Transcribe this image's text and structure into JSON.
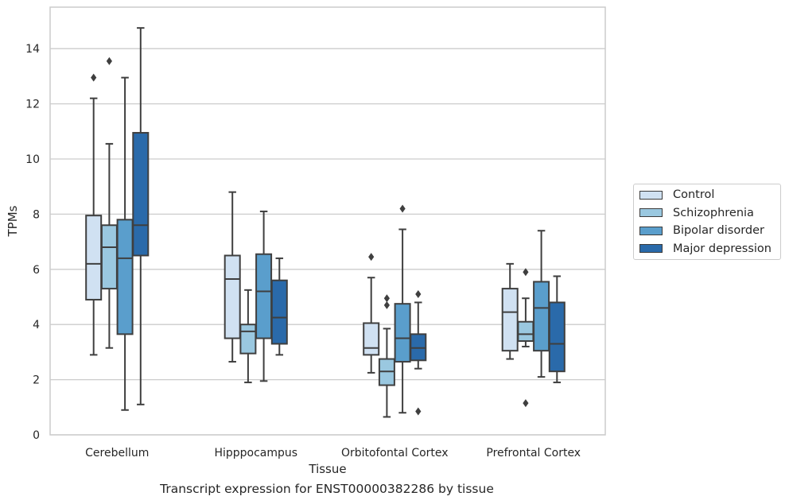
{
  "caption": "Transcript expression for ENST00000382286 by tissue",
  "chart_data": {
    "type": "box",
    "title": "",
    "xlabel": "Tissue",
    "ylabel": "TPMs",
    "ylim": [
      0,
      15.5
    ],
    "yticks": [
      0,
      2,
      4,
      6,
      8,
      10,
      12,
      14
    ],
    "grid": "horizontal",
    "legend_position": "right",
    "categories": [
      "Cerebellum",
      "Hipppocampus",
      "Orbitofontal Cortex",
      "Prefrontal Cortex"
    ],
    "series": [
      {
        "name": "Control",
        "color": "#d0e1f2",
        "boxes": [
          {
            "whislo": 2.9,
            "q1": 4.9,
            "med": 6.2,
            "q3": 7.95,
            "whishi": 12.2,
            "fliers": [
              12.95
            ]
          },
          {
            "whislo": 2.65,
            "q1": 3.5,
            "med": 5.65,
            "q3": 6.5,
            "whishi": 8.8,
            "fliers": []
          },
          {
            "whislo": 2.25,
            "q1": 2.9,
            "med": 3.15,
            "q3": 4.05,
            "whishi": 5.7,
            "fliers": [
              6.45
            ]
          },
          {
            "whislo": 2.75,
            "q1": 3.05,
            "med": 4.45,
            "q3": 5.3,
            "whishi": 6.2,
            "fliers": []
          }
        ]
      },
      {
        "name": "Schizophrenia",
        "color": "#9ac8e0",
        "boxes": [
          {
            "whislo": 3.15,
            "q1": 5.3,
            "med": 6.8,
            "q3": 7.6,
            "whishi": 10.55,
            "fliers": [
              13.55
            ]
          },
          {
            "whislo": 1.9,
            "q1": 2.95,
            "med": 3.75,
            "q3": 4.0,
            "whishi": 5.25,
            "fliers": []
          },
          {
            "whislo": 0.65,
            "q1": 1.8,
            "med": 2.3,
            "q3": 2.75,
            "whishi": 3.85,
            "fliers": [
              4.7,
              4.95
            ]
          },
          {
            "whislo": 3.2,
            "q1": 3.4,
            "med": 3.65,
            "q3": 4.1,
            "whishi": 4.95,
            "fliers": [
              5.9,
              1.15
            ]
          }
        ]
      },
      {
        "name": "Bipolar disorder",
        "color": "#5a9ecc",
        "boxes": [
          {
            "whislo": 0.9,
            "q1": 3.65,
            "med": 6.4,
            "q3": 7.8,
            "whishi": 12.95,
            "fliers": []
          },
          {
            "whislo": 1.95,
            "q1": 3.5,
            "med": 5.2,
            "q3": 6.55,
            "whishi": 8.1,
            "fliers": []
          },
          {
            "whislo": 0.8,
            "q1": 2.65,
            "med": 3.5,
            "q3": 4.75,
            "whishi": 7.45,
            "fliers": [
              8.2
            ]
          },
          {
            "whislo": 2.1,
            "q1": 3.05,
            "med": 4.6,
            "q3": 5.55,
            "whishi": 7.4,
            "fliers": []
          }
        ]
      },
      {
        "name": "Major depression",
        "color": "#2a6aaa",
        "boxes": [
          {
            "whislo": 1.1,
            "q1": 6.5,
            "med": 7.6,
            "q3": 10.95,
            "whishi": 14.75,
            "fliers": []
          },
          {
            "whislo": 2.9,
            "q1": 3.3,
            "med": 4.25,
            "q3": 5.6,
            "whishi": 6.4,
            "fliers": []
          },
          {
            "whislo": 2.4,
            "q1": 2.7,
            "med": 3.15,
            "q3": 3.65,
            "whishi": 4.8,
            "fliers": [
              5.1,
              0.85
            ]
          },
          {
            "whislo": 1.9,
            "q1": 2.3,
            "med": 3.3,
            "q3": 4.8,
            "whishi": 5.75,
            "fliers": []
          }
        ]
      }
    ]
  }
}
